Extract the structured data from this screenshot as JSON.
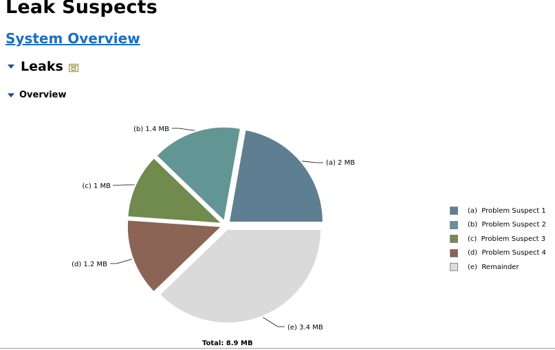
{
  "page": {
    "title": "Leak Suspects",
    "overview_link": "System Overview"
  },
  "leaks_section": {
    "heading": "Leaks",
    "expanded": true,
    "details_icon": "details-icon"
  },
  "overview_section": {
    "heading": "Overview",
    "expanded": true
  },
  "chart_data": {
    "type": "pie",
    "title": "",
    "total_label": "Total: 8.9 MB",
    "slices": [
      {
        "key": "(a)",
        "label": "(a)  2 MB",
        "legend": "(a)  Problem Suspect 1",
        "value": 2.0,
        "color": "#5e7f91"
      },
      {
        "key": "(b)",
        "label": "(b)  1.4 MB",
        "legend": "(b)  Problem Suspect 2",
        "value": 1.4,
        "color": "#629695"
      },
      {
        "key": "(c)",
        "label": "(c)  1 MB",
        "legend": "(c)  Problem Suspect 3",
        "value": 1.0,
        "color": "#718a4d"
      },
      {
        "key": "(d)",
        "label": "(d)  1.2 MB",
        "legend": "(d)  Problem Suspect 4",
        "value": 1.2,
        "color": "#8b6455"
      },
      {
        "key": "(e)",
        "label": "(e)  3.4 MB",
        "legend": "(e)  Remainder",
        "value": 3.4,
        "color": "#dadada"
      }
    ],
    "legend_position": "right"
  }
}
